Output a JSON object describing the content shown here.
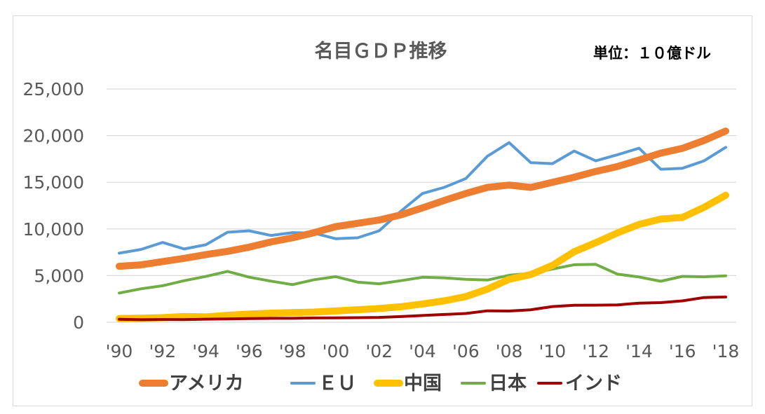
{
  "chart_data": {
    "type": "line",
    "title": "名目ＧＤＰ推移",
    "unit_label": "単位：１０億ドル",
    "xlabel": "",
    "ylabel": "",
    "ylim": [
      0,
      25000
    ],
    "y_ticks": [
      0,
      5000,
      10000,
      15000,
      20000,
      25000
    ],
    "y_tick_labels": [
      "0",
      "5,000",
      "10,000",
      "15,000",
      "20,000",
      "25,000"
    ],
    "x": [
      1990,
      1991,
      1992,
      1993,
      1994,
      1995,
      1996,
      1997,
      1998,
      1999,
      2000,
      2001,
      2002,
      2003,
      2004,
      2005,
      2006,
      2007,
      2008,
      2009,
      2010,
      2011,
      2012,
      2013,
      2014,
      2015,
      2016,
      2017,
      2018
    ],
    "x_tick_values": [
      1990,
      1992,
      1994,
      1996,
      1998,
      2000,
      2002,
      2004,
      2006,
      2008,
      2010,
      2012,
      2014,
      2016,
      2018
    ],
    "x_tick_labels": [
      "'90",
      "'92",
      "'94",
      "'96",
      "'98",
      "'00",
      "'02",
      "'04",
      "'06",
      "'08",
      "'10",
      "'12",
      "'14",
      "'16",
      "'18"
    ],
    "grid": "horizontal",
    "legend_position": "bottom",
    "series": [
      {
        "name": "アメリカ",
        "color": "#ED7D31",
        "values": [
          6000,
          6150,
          6500,
          6850,
          7250,
          7600,
          8050,
          8600,
          9050,
          9600,
          10250,
          10600,
          10950,
          11500,
          12250,
          13050,
          13800,
          14450,
          14700,
          14450,
          14990,
          15540,
          16160,
          16690,
          17390,
          18120,
          18630,
          19480,
          20490
        ]
      },
      {
        "name": "ＥＵ",
        "color": "#5B9BD5",
        "values": [
          7400,
          7800,
          8550,
          7850,
          8300,
          9650,
          9800,
          9300,
          9600,
          9550,
          8950,
          9050,
          9800,
          11900,
          13800,
          14450,
          15400,
          17800,
          19250,
          17100,
          17000,
          18350,
          17300,
          17950,
          18650,
          16400,
          16500,
          17300,
          18750
        ]
      },
      {
        "name": "中国",
        "color": "#FFC000",
        "values": [
          400,
          430,
          490,
          620,
          570,
          740,
          870,
          970,
          1030,
          1090,
          1210,
          1340,
          1470,
          1660,
          1960,
          2290,
          2750,
          3550,
          4600,
          5110,
          6090,
          7550,
          8530,
          9570,
          10480,
          11060,
          11230,
          12310,
          13610
        ]
      },
      {
        "name": "日本",
        "color": "#70AD47",
        "values": [
          3130,
          3580,
          3910,
          4450,
          4910,
          5450,
          4830,
          4410,
          4030,
          4560,
          4890,
          4300,
          4120,
          4450,
          4820,
          4760,
          4600,
          4520,
          5040,
          5230,
          5700,
          6160,
          6200,
          5160,
          4850,
          4390,
          4920,
          4870,
          4970
        ]
      },
      {
        "name": "インド",
        "color": "#A00000",
        "values": [
          320,
          270,
          290,
          280,
          330,
          360,
          390,
          420,
          420,
          460,
          470,
          490,
          520,
          610,
          720,
          830,
          940,
          1220,
          1200,
          1340,
          1680,
          1820,
          1830,
          1860,
          2040,
          2100,
          2290,
          2650,
          2700
        ]
      }
    ]
  }
}
